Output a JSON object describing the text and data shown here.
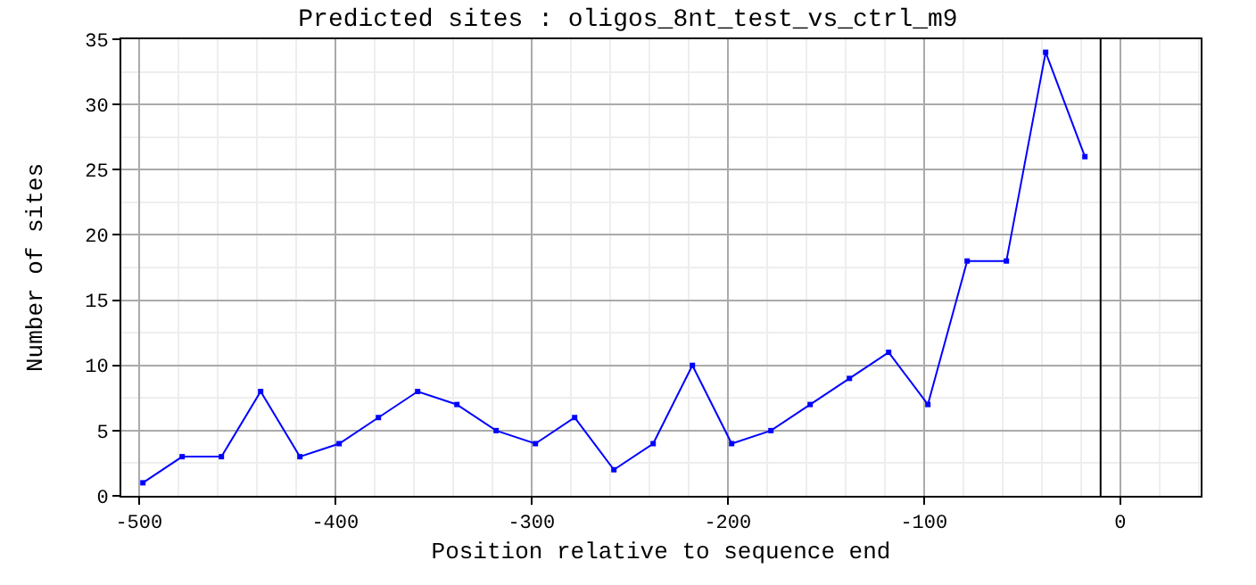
{
  "chart_data": {
    "type": "line",
    "title": "Predicted sites : oligos_8nt_test_vs_ctrl_m9",
    "xlabel": "Position relative to sequence end",
    "ylabel": "Number of sites",
    "x": [
      -498,
      -478,
      -458,
      -438,
      -418,
      -398,
      -378,
      -358,
      -338,
      -318,
      -298,
      -278,
      -258,
      -238,
      -218,
      -198,
      -178,
      -158,
      -138,
      -118,
      -98,
      -78,
      -58,
      -38,
      -18
    ],
    "series": [
      {
        "color": "#0000ff",
        "values": [
          1,
          3,
          3,
          8,
          3,
          4,
          6,
          8,
          7,
          5,
          4,
          6,
          2,
          4,
          10,
          4,
          5,
          7,
          9,
          11,
          7,
          18,
          18,
          34,
          26
        ]
      }
    ],
    "xlim": [
      -509,
      41
    ],
    "xticks": [
      -500,
      -400,
      -300,
      -200,
      -100,
      0
    ],
    "ylim": [
      0,
      35
    ],
    "yticks": [
      0,
      5,
      10,
      15,
      20,
      25,
      30,
      35
    ],
    "ref_lines": [
      {
        "axis": "x",
        "value": -10,
        "color": "#000000"
      }
    ],
    "grid": true,
    "marker": "square",
    "line_style": "solid"
  }
}
